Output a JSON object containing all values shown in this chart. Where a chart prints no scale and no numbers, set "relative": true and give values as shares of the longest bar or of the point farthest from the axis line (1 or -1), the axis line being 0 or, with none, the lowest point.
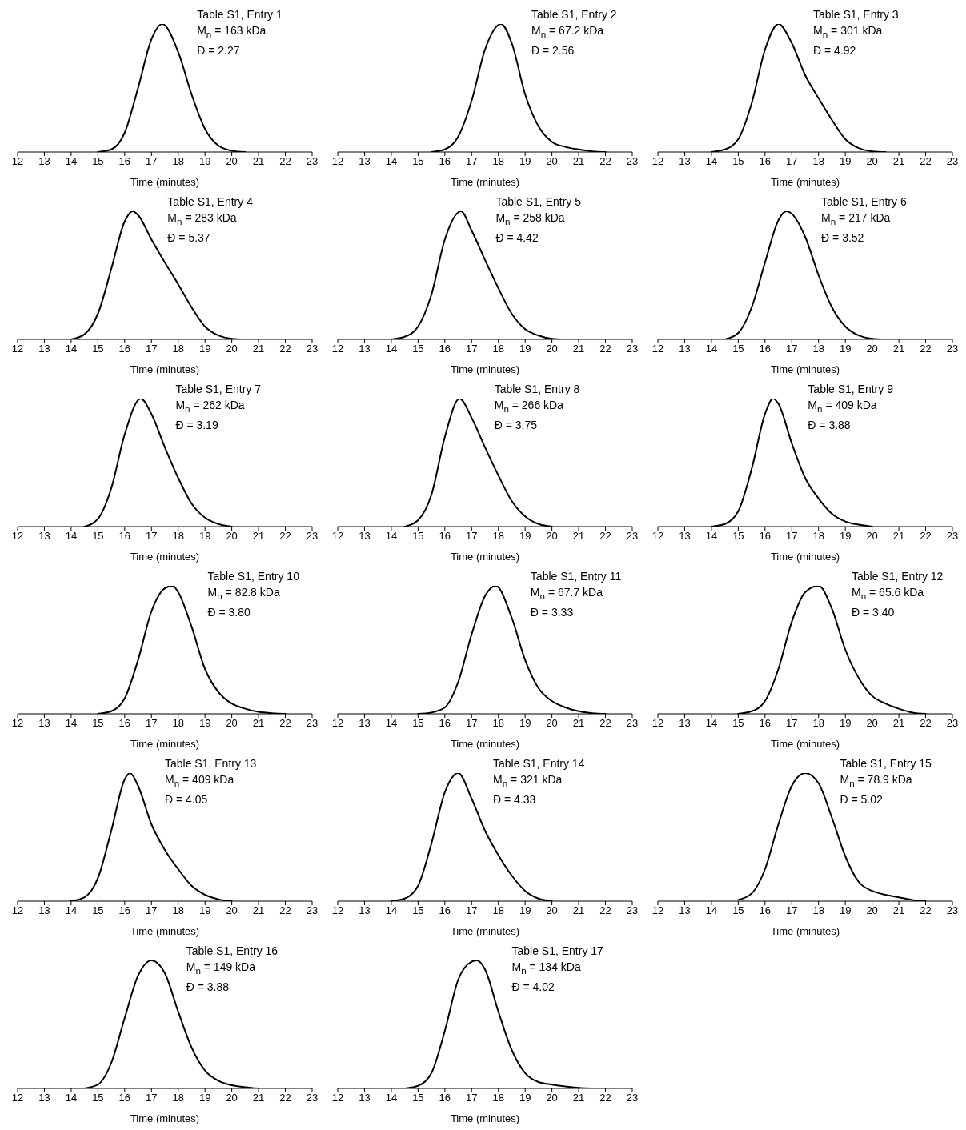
{
  "chart_data": [
    {
      "type": "line",
      "relative": true,
      "color": "#000000",
      "xlim": [
        12,
        23
      ],
      "xticks": [
        12,
        13,
        14,
        15,
        16,
        17,
        18,
        19,
        20,
        21,
        22,
        23
      ],
      "xlabel": "Time (minutes)",
      "annotations": [
        "Table S1, Entry 1",
        "M$_{n}$ = 163 kDa",
        "Đ = 2.27"
      ],
      "x": [
        15,
        15.5,
        16,
        16.5,
        17,
        17.4,
        18,
        18.5,
        19,
        19.5,
        20,
        20.5
      ],
      "values": [
        0,
        0.02,
        0.15,
        0.5,
        0.88,
        1,
        0.78,
        0.45,
        0.18,
        0.05,
        0.01,
        0
      ]
    },
    {
      "type": "line",
      "relative": true,
      "color": "#000000",
      "xlim": [
        12,
        23
      ],
      "xticks": [
        12,
        13,
        14,
        15,
        16,
        17,
        18,
        19,
        20,
        21,
        22,
        23
      ],
      "xlabel": "Time (minutes)",
      "annotations": [
        "Table S1, Entry 2",
        "M$_{n}$ = 67.2 kDa",
        "Đ = 2.56"
      ],
      "x": [
        15.5,
        16,
        16.5,
        17,
        17.5,
        18.1,
        18.5,
        19,
        19.5,
        20,
        20.5,
        21,
        21.5,
        22
      ],
      "values": [
        0,
        0.02,
        0.12,
        0.4,
        0.8,
        1,
        0.85,
        0.45,
        0.2,
        0.08,
        0.04,
        0.02,
        0.005,
        0
      ]
    },
    {
      "type": "line",
      "relative": true,
      "color": "#000000",
      "xlim": [
        12,
        23
      ],
      "xticks": [
        12,
        13,
        14,
        15,
        16,
        17,
        18,
        19,
        20,
        21,
        22,
        23
      ],
      "xlabel": "Time (minutes)",
      "annotations": [
        "Table S1, Entry 3",
        "M$_{n}$ = 301 kDa",
        "Đ = 4.92"
      ],
      "x": [
        14,
        14.5,
        15,
        15.5,
        16,
        16.5,
        17,
        17.5,
        18,
        18.5,
        19,
        19.5,
        20,
        20.5
      ],
      "values": [
        0,
        0.02,
        0.1,
        0.38,
        0.8,
        1,
        0.85,
        0.6,
        0.42,
        0.25,
        0.1,
        0.03,
        0.005,
        0
      ]
    },
    {
      "type": "line",
      "relative": true,
      "color": "#000000",
      "xlim": [
        12,
        23
      ],
      "xticks": [
        12,
        13,
        14,
        15,
        16,
        17,
        18,
        19,
        20,
        21,
        22,
        23
      ],
      "xlabel": "Time (minutes)",
      "annotations": [
        "Table S1, Entry 4",
        "M$_{n}$ = 283 kDa",
        "Đ = 5.37"
      ],
      "x": [
        14,
        14.5,
        15,
        15.5,
        16,
        16.3,
        16.5,
        17,
        17.5,
        18,
        18.5,
        19,
        19.5,
        20,
        20.5
      ],
      "values": [
        0,
        0.04,
        0.2,
        0.55,
        0.92,
        1,
        0.97,
        0.78,
        0.6,
        0.43,
        0.25,
        0.1,
        0.03,
        0.005,
        0
      ]
    },
    {
      "type": "line",
      "relative": true,
      "color": "#000000",
      "xlim": [
        12,
        23
      ],
      "xticks": [
        12,
        13,
        14,
        15,
        16,
        17,
        18,
        19,
        20,
        21,
        22,
        23
      ],
      "xlabel": "Time (minutes)",
      "annotations": [
        "Table S1, Entry 5",
        "M$_{n}$ = 258 kDa",
        "Đ = 4.42"
      ],
      "x": [
        14,
        14.5,
        15,
        15.5,
        16,
        16.6,
        17,
        17.5,
        18,
        18.5,
        19,
        19.5,
        20,
        20.5
      ],
      "values": [
        0,
        0.02,
        0.1,
        0.35,
        0.78,
        1,
        0.85,
        0.62,
        0.4,
        0.2,
        0.08,
        0.03,
        0.005,
        0
      ]
    },
    {
      "type": "line",
      "relative": true,
      "color": "#000000",
      "xlim": [
        12,
        23
      ],
      "xticks": [
        12,
        13,
        14,
        15,
        16,
        17,
        18,
        19,
        20,
        21,
        22,
        23
      ],
      "xlabel": "Time (minutes)",
      "annotations": [
        "Table S1, Entry 6",
        "M$_{n}$ = 217 kDa",
        "Đ = 3.52"
      ],
      "x": [
        14.5,
        15,
        15.5,
        16,
        16.5,
        16.8,
        17,
        17.5,
        18,
        18.5,
        19,
        19.5,
        20,
        20.5
      ],
      "values": [
        0,
        0.05,
        0.25,
        0.6,
        0.93,
        1,
        0.98,
        0.8,
        0.5,
        0.25,
        0.1,
        0.03,
        0.005,
        0
      ]
    },
    {
      "type": "line",
      "relative": true,
      "color": "#000000",
      "xlim": [
        12,
        23
      ],
      "xticks": [
        12,
        13,
        14,
        15,
        16,
        17,
        18,
        19,
        20,
        21,
        22,
        23
      ],
      "xlabel": "Time (minutes)",
      "annotations": [
        "Table S1, Entry 7",
        "M$_{n}$ = 262 kDa",
        "Đ = 3.19"
      ],
      "x": [
        14.5,
        15,
        15.5,
        16,
        16.6,
        17,
        17.5,
        18,
        18.5,
        19,
        19.5,
        20
      ],
      "values": [
        0,
        0.06,
        0.3,
        0.72,
        1,
        0.88,
        0.62,
        0.38,
        0.18,
        0.07,
        0.02,
        0
      ]
    },
    {
      "type": "line",
      "relative": true,
      "color": "#000000",
      "xlim": [
        12,
        23
      ],
      "xticks": [
        12,
        13,
        14,
        15,
        16,
        17,
        18,
        19,
        20,
        21,
        22,
        23
      ],
      "xlabel": "Time (minutes)",
      "annotations": [
        "Table S1, Entry 8",
        "M$_{n}$ = 266 kDa",
        "Đ = 3.75"
      ],
      "x": [
        14.5,
        15,
        15.5,
        16,
        16.55,
        17,
        17.5,
        18,
        18.5,
        19,
        19.5,
        20
      ],
      "values": [
        0,
        0.05,
        0.25,
        0.7,
        1,
        0.85,
        0.62,
        0.4,
        0.2,
        0.08,
        0.02,
        0
      ]
    },
    {
      "type": "line",
      "relative": true,
      "color": "#000000",
      "xlim": [
        12,
        23
      ],
      "xticks": [
        12,
        13,
        14,
        15,
        16,
        17,
        18,
        19,
        20,
        21,
        22,
        23
      ],
      "xlabel": "Time (minutes)",
      "annotations": [
        "Table S1, Entry 9",
        "M$_{n}$ = 409 kDa",
        "Đ = 3.88"
      ],
      "x": [
        14,
        14.5,
        15,
        15.5,
        16,
        16.3,
        16.5,
        17,
        17.5,
        18,
        18.5,
        19,
        19.5,
        20
      ],
      "values": [
        0,
        0.02,
        0.12,
        0.45,
        0.88,
        1,
        0.96,
        0.65,
        0.38,
        0.22,
        0.1,
        0.04,
        0.015,
        0
      ]
    },
    {
      "type": "line",
      "relative": true,
      "color": "#000000",
      "xlim": [
        12,
        23
      ],
      "xticks": [
        12,
        13,
        14,
        15,
        16,
        17,
        18,
        19,
        20,
        21,
        22,
        23
      ],
      "xlabel": "Time (minutes)",
      "annotations": [
        "Table S1, Entry 10",
        "M$_{n}$ = 82.8 kDa",
        "Đ = 3.80"
      ],
      "x": [
        15,
        15.5,
        16,
        16.5,
        17,
        17.5,
        17.8,
        18,
        18.5,
        19,
        19.5,
        20,
        20.5,
        21,
        21.5,
        22
      ],
      "values": [
        0,
        0.02,
        0.12,
        0.42,
        0.8,
        0.98,
        1,
        0.95,
        0.68,
        0.35,
        0.17,
        0.08,
        0.04,
        0.015,
        0.005,
        0
      ]
    },
    {
      "type": "line",
      "relative": true,
      "color": "#000000",
      "xlim": [
        12,
        23
      ],
      "xticks": [
        12,
        13,
        14,
        15,
        16,
        17,
        18,
        19,
        20,
        21,
        22,
        23
      ],
      "xlabel": "Time (minutes)",
      "annotations": [
        "Table S1, Entry 11",
        "M$_{n}$ = 67.7 kDa",
        "Đ = 3.33"
      ],
      "x": [
        15,
        15.5,
        16,
        16.5,
        17,
        17.5,
        17.9,
        18.5,
        19,
        19.5,
        20,
        20.5,
        21,
        21.5,
        22
      ],
      "values": [
        0,
        0.01,
        0.05,
        0.25,
        0.62,
        0.92,
        1,
        0.75,
        0.42,
        0.2,
        0.1,
        0.05,
        0.02,
        0.005,
        0
      ]
    },
    {
      "type": "line",
      "relative": true,
      "color": "#000000",
      "xlim": [
        12,
        23
      ],
      "xticks": [
        12,
        13,
        14,
        15,
        16,
        17,
        18,
        19,
        20,
        21,
        22,
        23
      ],
      "xlabel": "Time (minutes)",
      "annotations": [
        "Table S1, Entry 12",
        "M$_{n}$ = 65.6 kDa",
        "Đ = 3.40"
      ],
      "x": [
        15,
        15.5,
        16,
        16.5,
        17,
        17.5,
        18,
        18.5,
        19,
        19.5,
        20,
        20.5,
        21,
        21.5,
        22
      ],
      "values": [
        0,
        0.02,
        0.1,
        0.35,
        0.72,
        0.95,
        1,
        0.82,
        0.5,
        0.28,
        0.14,
        0.08,
        0.04,
        0.01,
        0
      ]
    },
    {
      "type": "line",
      "relative": true,
      "color": "#000000",
      "xlim": [
        12,
        23
      ],
      "xticks": [
        12,
        13,
        14,
        15,
        16,
        17,
        18,
        19,
        20,
        21,
        22,
        23
      ],
      "xlabel": "Time (minutes)",
      "annotations": [
        "Table S1, Entry 13",
        "M$_{n}$ = 409 kDa",
        "Đ = 4.05"
      ],
      "x": [
        14,
        14.5,
        15,
        15.5,
        16,
        16.2,
        16.5,
        17,
        17.5,
        18,
        18.5,
        19,
        19.5,
        20
      ],
      "values": [
        0,
        0.03,
        0.18,
        0.55,
        0.95,
        1,
        0.9,
        0.6,
        0.4,
        0.25,
        0.12,
        0.05,
        0.015,
        0
      ]
    },
    {
      "type": "line",
      "relative": true,
      "color": "#000000",
      "xlim": [
        12,
        23
      ],
      "xticks": [
        12,
        13,
        14,
        15,
        16,
        17,
        18,
        19,
        20,
        21,
        22,
        23
      ],
      "xlabel": "Time (minutes)",
      "annotations": [
        "Table S1, Entry 14",
        "M$_{n}$ = 321 kDa",
        "Đ = 4.33"
      ],
      "x": [
        14,
        14.5,
        15,
        15.5,
        16,
        16.5,
        17,
        17.5,
        18,
        18.5,
        19,
        19.5,
        20
      ],
      "values": [
        0,
        0.02,
        0.12,
        0.45,
        0.85,
        1,
        0.8,
        0.55,
        0.36,
        0.2,
        0.08,
        0.02,
        0
      ]
    },
    {
      "type": "line",
      "relative": true,
      "color": "#000000",
      "xlim": [
        12,
        23
      ],
      "xticks": [
        12,
        13,
        14,
        15,
        16,
        17,
        18,
        19,
        20,
        21,
        22,
        23
      ],
      "xlabel": "Time (minutes)",
      "annotations": [
        "Table S1, Entry 15",
        "M$_{n}$ = 78.9 kDa",
        "Đ = 5.02"
      ],
      "x": [
        15,
        15.5,
        16,
        16.5,
        17,
        17.5,
        18,
        18.5,
        19,
        19.5,
        20,
        20.5,
        21,
        21.5,
        22
      ],
      "values": [
        0.01,
        0.06,
        0.25,
        0.6,
        0.9,
        1,
        0.92,
        0.65,
        0.35,
        0.15,
        0.08,
        0.05,
        0.03,
        0.01,
        0
      ]
    },
    {
      "type": "line",
      "relative": true,
      "color": "#000000",
      "xlim": [
        12,
        23
      ],
      "xticks": [
        12,
        13,
        14,
        15,
        16,
        17,
        18,
        19,
        20,
        21,
        22,
        23
      ],
      "xlabel": "Time (minutes)",
      "annotations": [
        "Table S1, Entry 16",
        "M$_{n}$ = 149 kDa",
        "Đ = 3.88"
      ],
      "x": [
        14.5,
        15,
        15.5,
        16,
        16.5,
        17,
        17.5,
        18,
        18.5,
        19,
        19.5,
        20,
        20.5,
        21
      ],
      "values": [
        0,
        0.03,
        0.2,
        0.55,
        0.88,
        1,
        0.9,
        0.6,
        0.32,
        0.14,
        0.06,
        0.025,
        0.01,
        0
      ]
    },
    {
      "type": "line",
      "relative": true,
      "color": "#000000",
      "xlim": [
        12,
        23
      ],
      "xticks": [
        12,
        13,
        14,
        15,
        16,
        17,
        18,
        19,
        20,
        21,
        22,
        23
      ],
      "xlabel": "Time (minutes)",
      "annotations": [
        "Table S1, Entry 17",
        "M$_{n}$ = 134 kDa",
        "Đ = 4.02"
      ],
      "x": [
        14.5,
        15,
        15.5,
        16,
        16.5,
        17,
        17.2,
        17.5,
        18,
        18.5,
        19,
        19.5,
        20,
        20.5,
        21,
        21.5
      ],
      "values": [
        0,
        0.02,
        0.12,
        0.45,
        0.85,
        0.99,
        1,
        0.93,
        0.6,
        0.3,
        0.12,
        0.05,
        0.03,
        0.015,
        0.005,
        0
      ]
    }
  ]
}
